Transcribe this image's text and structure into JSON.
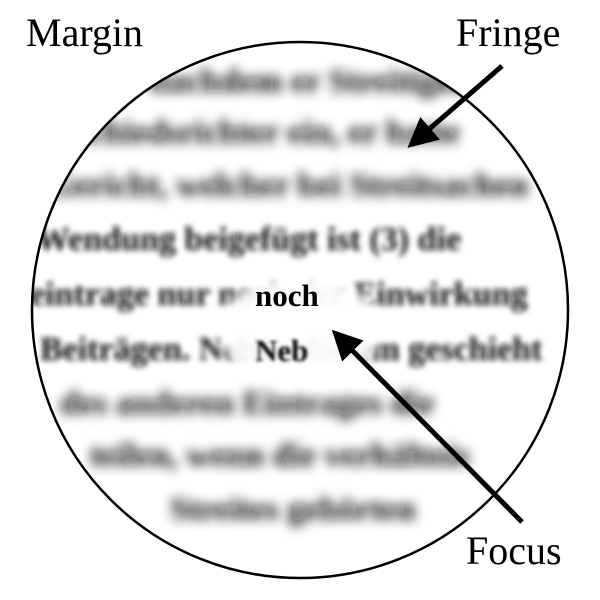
{
  "labels": {
    "margin": "Margin",
    "fringe": "Fringe",
    "focus": "Focus"
  },
  "focus_words": [
    "noch",
    "Neb"
  ],
  "blurred_lines": [
    "nachdem er Streitigkeiten",
    "Schiedsrichter ein, er hatte",
    "Gericht, welcher bei Streitsachen",
    "Wendung beigefügt ist (3) die",
    "eintrage nur noch der Einwirkung",
    "Beiträgen. Neben diesem geschieht",
    "des anderen Eintrages die",
    "teilen, wenn die verhältnis",
    "Streites gehörten"
  ],
  "colors": {
    "ink": "#000000",
    "paper": "#ffffff",
    "blur_ink": "#1a1a1a"
  }
}
